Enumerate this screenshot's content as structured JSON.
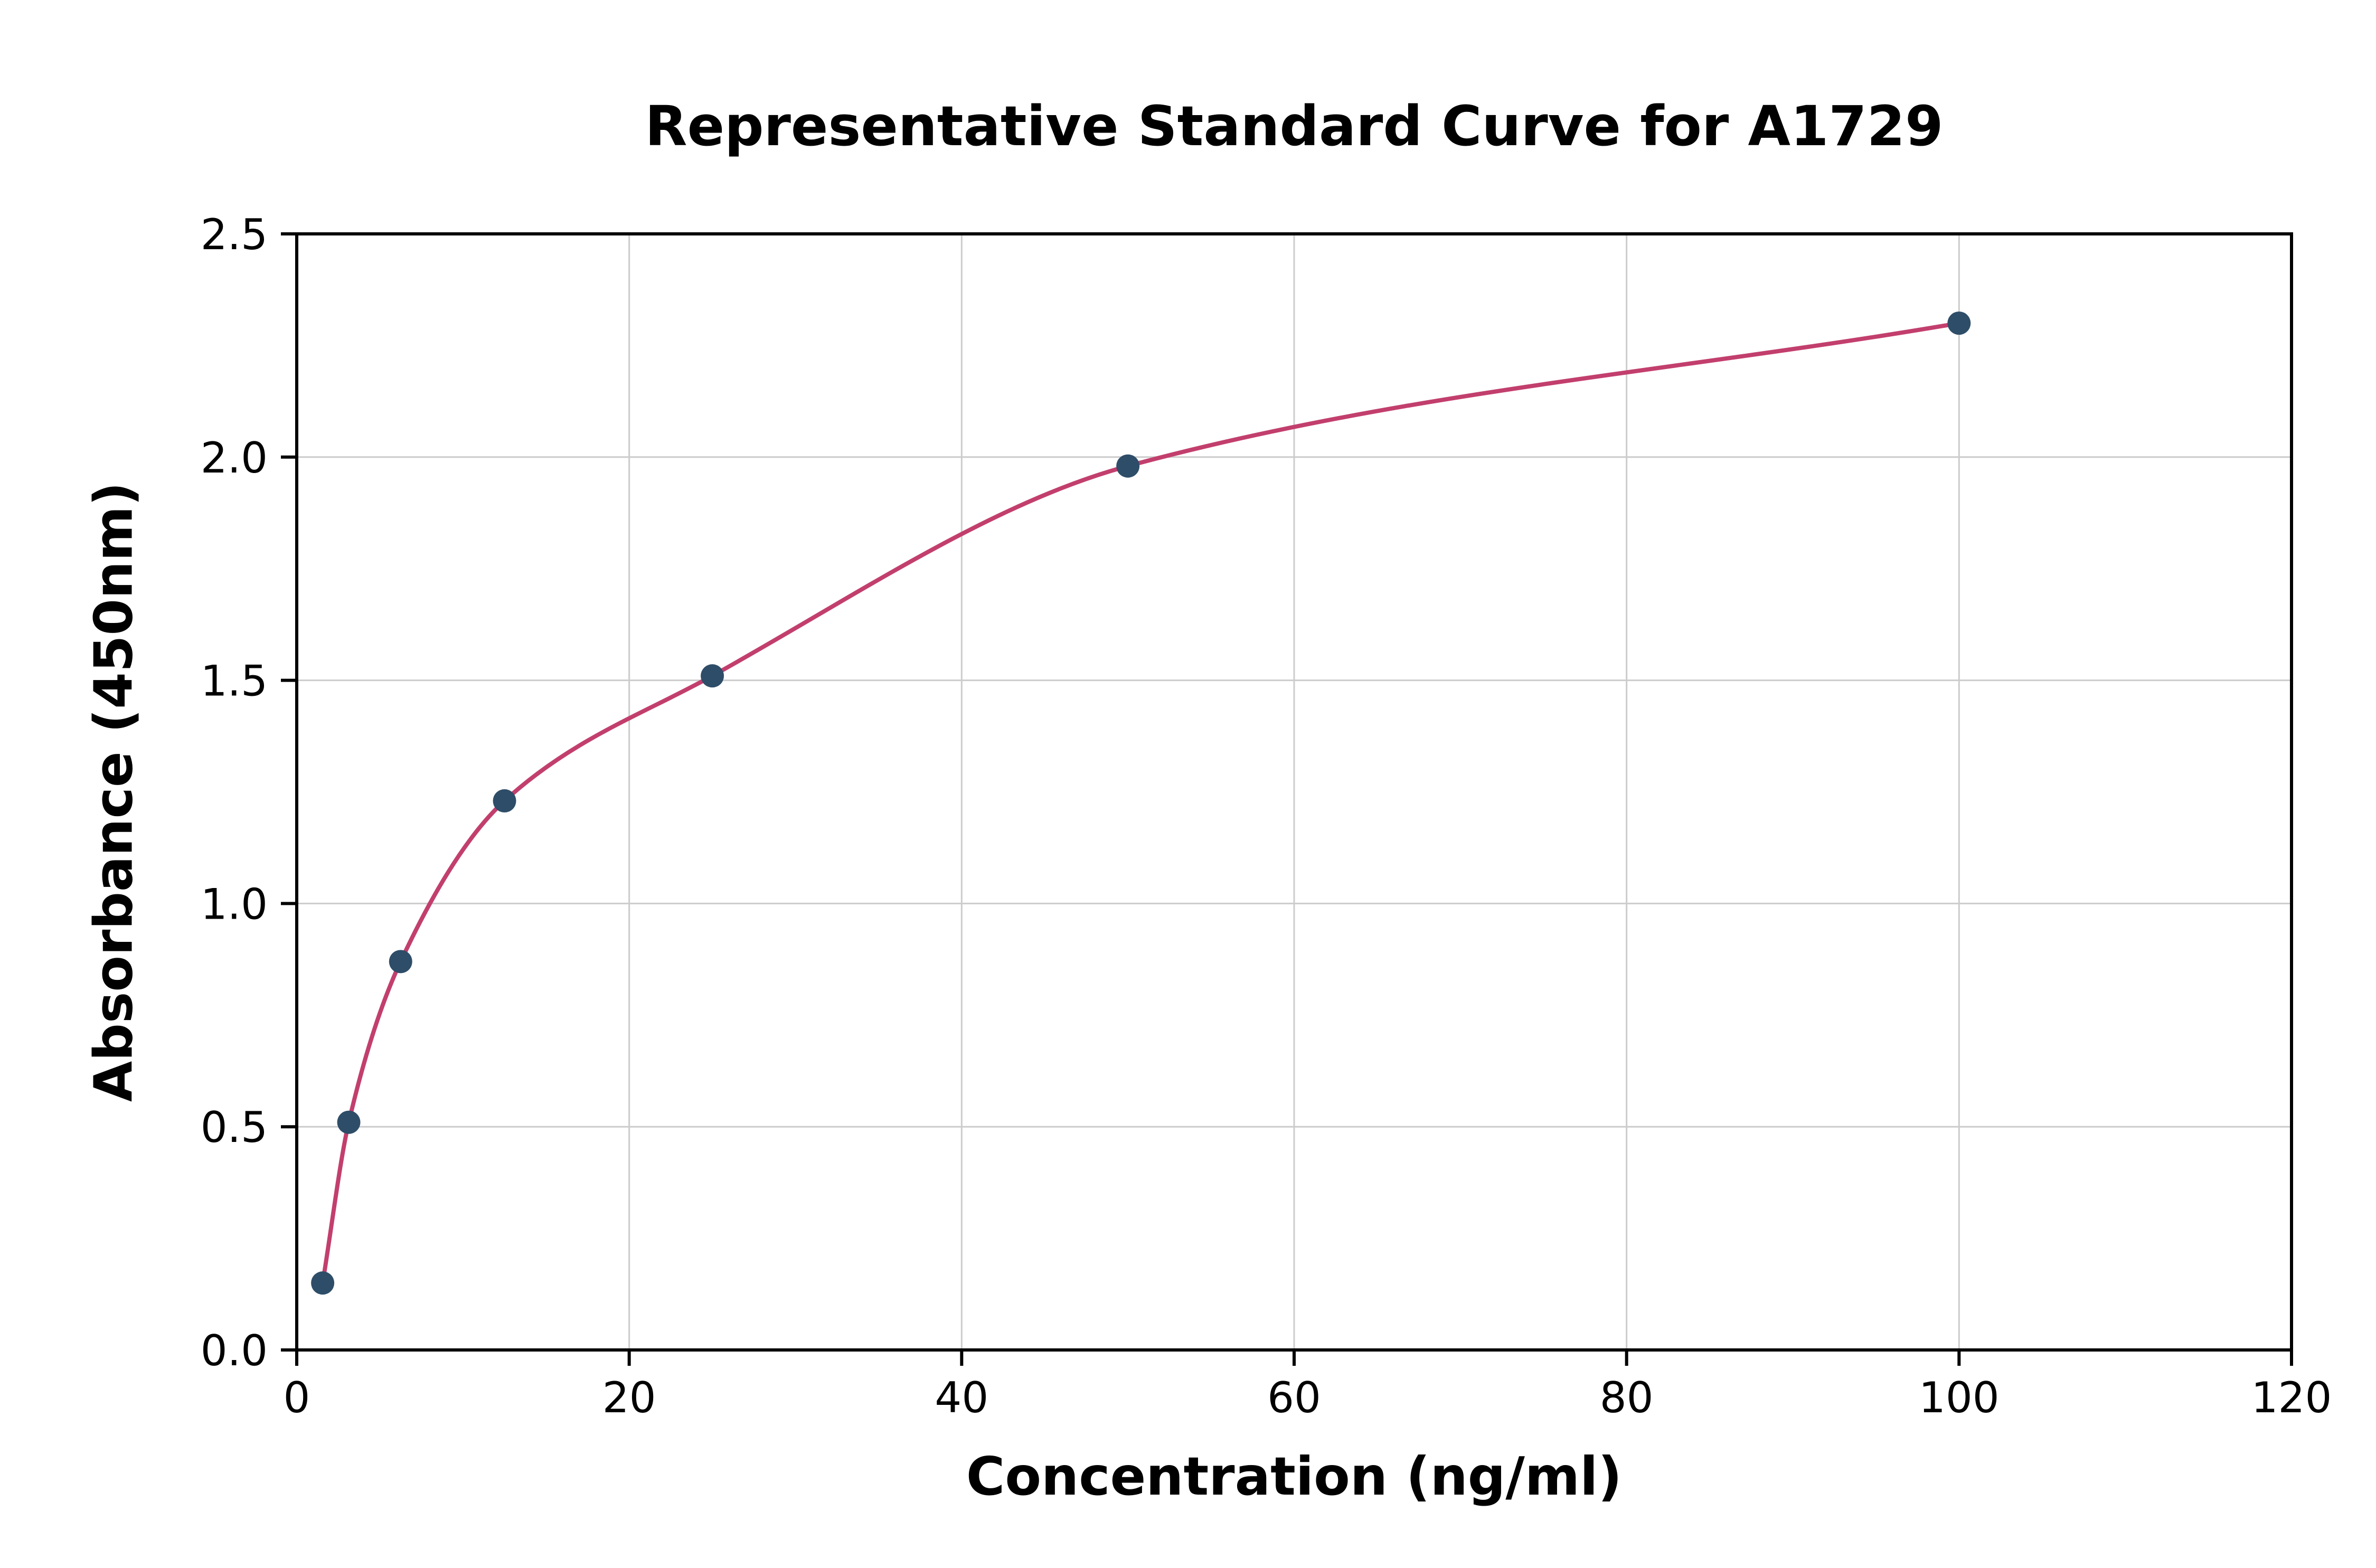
{
  "chart_data": {
    "type": "scatter",
    "title": "Representative Standard Curve for A1729",
    "xlabel": "Concentration (ng/ml)",
    "ylabel": "Absorbance (450nm)",
    "xlim": [
      0,
      120
    ],
    "ylim": [
      0,
      2.5
    ],
    "xticks": [
      0,
      20,
      40,
      60,
      80,
      100,
      120
    ],
    "yticks": [
      "0.0",
      "0.5",
      "1.0",
      "1.5",
      "2.0",
      "2.5"
    ],
    "grid": true,
    "legend_position": "none",
    "points": [
      {
        "x": 1.56,
        "y": 0.15
      },
      {
        "x": 3.13,
        "y": 0.51
      },
      {
        "x": 6.25,
        "y": 0.87
      },
      {
        "x": 12.5,
        "y": 1.23
      },
      {
        "x": 25,
        "y": 1.51
      },
      {
        "x": 50,
        "y": 1.98
      },
      {
        "x": 100,
        "y": 2.3
      }
    ],
    "colors": {
      "curve": "#c23f6d",
      "points": "#2e4d68",
      "grid": "#cccccc",
      "frame": "#000000",
      "background": "#ffffff"
    }
  }
}
